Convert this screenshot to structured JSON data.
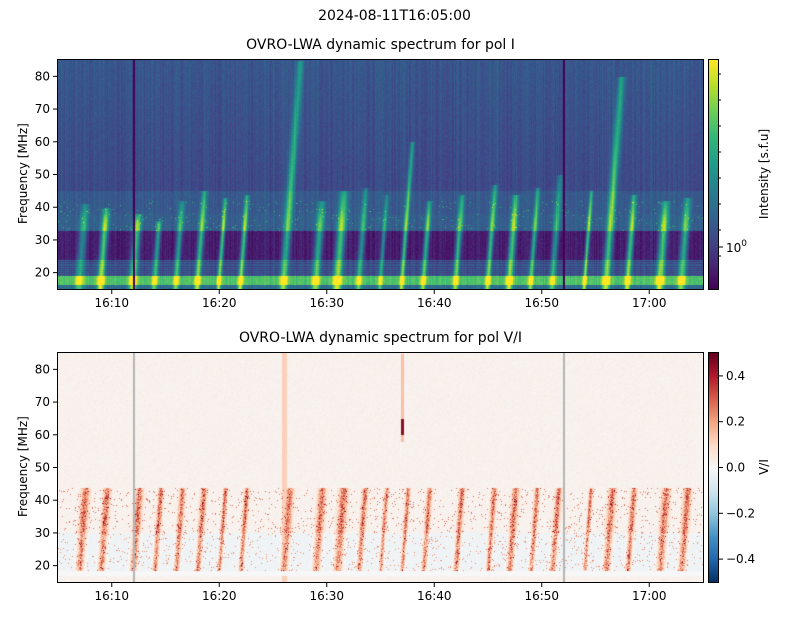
{
  "figure_title": "2024-08-11T16:05:00",
  "chart_data": [
    {
      "type": "heatmap",
      "title": "OVRO-LWA dynamic spectrum for pol I",
      "ylabel": "Frequency [MHz]",
      "xlabel": "",
      "ylim": [
        15,
        85
      ],
      "xlim": [
        "16:05",
        "17:05"
      ],
      "xticks": [
        "16:10",
        "16:20",
        "16:30",
        "16:40",
        "16:50",
        "17:00"
      ],
      "yticks": [
        20,
        30,
        40,
        50,
        60,
        70,
        80
      ],
      "colormap": "viridis",
      "colorbar": {
        "label": "Intensity [s.f.u]",
        "scale": "log",
        "tick_label": "10^0",
        "tick_value": 1
      },
      "bursts": [
        {
          "time": "16:07",
          "top_mhz": 41
        },
        {
          "time": "16:09",
          "top_mhz": 40
        },
        {
          "time": "16:12",
          "top_mhz": 38
        },
        {
          "time": "16:14",
          "top_mhz": 36
        },
        {
          "time": "16:16",
          "top_mhz": 42
        },
        {
          "time": "16:18",
          "top_mhz": 45
        },
        {
          "time": "16:20",
          "top_mhz": 43
        },
        {
          "time": "16:22",
          "top_mhz": 44
        },
        {
          "time": "16:26",
          "top_mhz": 85
        },
        {
          "time": "16:29",
          "top_mhz": 42
        },
        {
          "time": "16:31",
          "top_mhz": 45
        },
        {
          "time": "16:33",
          "top_mhz": 46
        },
        {
          "time": "16:35",
          "top_mhz": 44
        },
        {
          "time": "16:37",
          "top_mhz": 60
        },
        {
          "time": "16:39",
          "top_mhz": 42
        },
        {
          "time": "16:42",
          "top_mhz": 44
        },
        {
          "time": "16:45",
          "top_mhz": 47
        },
        {
          "time": "16:47",
          "top_mhz": 44
        },
        {
          "time": "16:49",
          "top_mhz": 46
        },
        {
          "time": "16:51",
          "top_mhz": 50
        },
        {
          "time": "16:54",
          "top_mhz": 45
        },
        {
          "time": "16:56",
          "top_mhz": 80
        },
        {
          "time": "16:58",
          "top_mhz": 44
        },
        {
          "time": "17:01",
          "top_mhz": 42
        },
        {
          "time": "17:03",
          "top_mhz": 43
        }
      ],
      "data_gaps": [
        "16:12",
        "16:52"
      ]
    },
    {
      "type": "heatmap",
      "title": "OVRO-LWA dynamic spectrum for pol V/I",
      "ylabel": "Frequency [MHz]",
      "xlabel": "",
      "ylim": [
        15,
        85
      ],
      "xlim": [
        "16:05",
        "17:05"
      ],
      "xticks": [
        "16:10",
        "16:20",
        "16:30",
        "16:40",
        "16:50",
        "17:00"
      ],
      "yticks": [
        20,
        30,
        40,
        50,
        60,
        70,
        80
      ],
      "colormap": "RdBu_r",
      "colorbar": {
        "label": "V/I",
        "scale": "linear",
        "range": [
          -0.5,
          0.5
        ],
        "ticks": [
          "0.4",
          "0.2",
          "0.0",
          "−0.2",
          "−0.4"
        ],
        "tick_values": [
          0.4,
          0.2,
          0.0,
          -0.2,
          -0.4
        ]
      },
      "polarized_band_mhz": [
        17,
        44
      ],
      "burst_feature": {
        "time": "16:37",
        "freq_range_mhz": [
          58,
          85
        ],
        "value": 0.45
      }
    }
  ]
}
